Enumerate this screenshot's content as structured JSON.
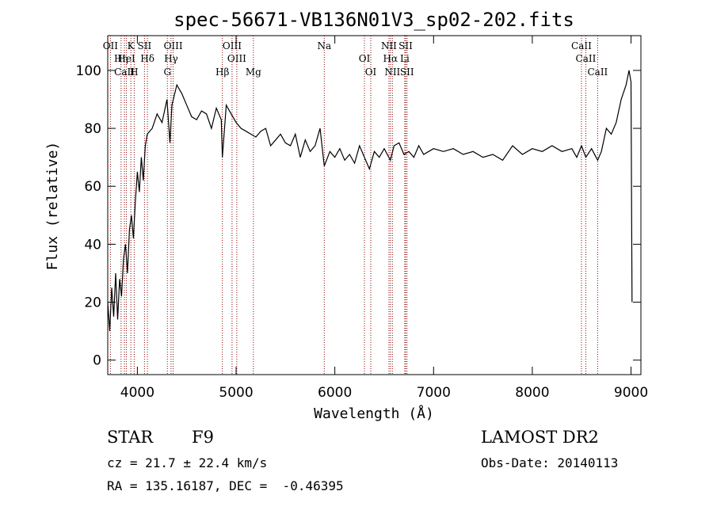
{
  "chart_data": {
    "type": "line",
    "title": "spec-56671-VB136N01V3_sp02-202.fits",
    "xlabel": "Wavelength (Å)",
    "ylabel": "Flux (relative)",
    "xlim": [
      3700,
      9100
    ],
    "ylim": [
      -5,
      112
    ],
    "x_ticks": [
      4000,
      5000,
      6000,
      7000,
      8000,
      9000
    ],
    "y_ticks": [
      0,
      20,
      40,
      60,
      80,
      100
    ],
    "series": [
      {
        "x": [
          3700,
          3720,
          3740,
          3760,
          3780,
          3800,
          3820,
          3840,
          3860,
          3880,
          3900,
          3920,
          3940,
          3960,
          3980,
          4000,
          4020,
          4040,
          4060,
          4080,
          4100,
          4150,
          4200,
          4250,
          4300,
          4330,
          4350,
          4400,
          4450,
          4500,
          4550,
          4600,
          4650,
          4700,
          4750,
          4800,
          4850,
          4861,
          4900,
          4950,
          5000,
          5050,
          5100,
          5150,
          5200,
          5250,
          5300,
          5350,
          5400,
          5450,
          5500,
          5550,
          5600,
          5650,
          5700,
          5750,
          5800,
          5850,
          5893,
          5950,
          6000,
          6050,
          6100,
          6150,
          6200,
          6250,
          6300,
          6350,
          6400,
          6450,
          6500,
          6563,
          6600,
          6650,
          6700,
          6750,
          6800,
          6850,
          6900,
          6950,
          7000,
          7100,
          7200,
          7300,
          7400,
          7500,
          7600,
          7700,
          7800,
          7900,
          8000,
          8100,
          8200,
          8300,
          8400,
          8450,
          8498,
          8542,
          8600,
          8662,
          8700,
          8750,
          8800,
          8850,
          8900,
          8950,
          8980,
          9000,
          9010
        ],
        "y": [
          20,
          10,
          25,
          15,
          30,
          14,
          28,
          22,
          35,
          40,
          30,
          45,
          50,
          42,
          55,
          65,
          58,
          70,
          62,
          74,
          78,
          80,
          85,
          82,
          90,
          75,
          88,
          95,
          92,
          88,
          84,
          83,
          86,
          85,
          80,
          87,
          83,
          70,
          88,
          85,
          82,
          80,
          79,
          78,
          77,
          79,
          80,
          74,
          76,
          78,
          75,
          74,
          78,
          70,
          76,
          72,
          74,
          80,
          67,
          72,
          70,
          73,
          69,
          71,
          68,
          74,
          70,
          66,
          72,
          70,
          73,
          69,
          74,
          75,
          71,
          72,
          70,
          74,
          71,
          72,
          73,
          72,
          73,
          71,
          72,
          70,
          71,
          69,
          74,
          71,
          73,
          72,
          74,
          72,
          73,
          70,
          74,
          70,
          73,
          69,
          72,
          80,
          78,
          82,
          90,
          95,
          100,
          96,
          20
        ]
      }
    ],
    "lines": [
      {
        "label": "OII",
        "x": 3727
      },
      {
        "label": "Hη",
        "x": 3835
      },
      {
        "label": "CaII",
        "x": 3869
      },
      {
        "label": "K",
        "x": 3934
      },
      {
        "label": "HeI",
        "x": 3889
      },
      {
        "label": "H",
        "x": 3968
      },
      {
        "label": "SII",
        "x": 4072
      },
      {
        "label": "Hδ",
        "x": 4102
      },
      {
        "label": "G",
        "x": 4304
      },
      {
        "label": "OIII",
        "x": 4363
      },
      {
        "label": "Hγ",
        "x": 4341
      },
      {
        "label": "Hβ",
        "x": 4861
      },
      {
        "label": "OIII",
        "x": 4959
      },
      {
        "label": "OIII",
        "x": 5007
      },
      {
        "label": "Mg",
        "x": 5175
      },
      {
        "label": "Na",
        "x": 5893
      },
      {
        "label": "OI",
        "x": 6300
      },
      {
        "label": "OI",
        "x": 6364
      },
      {
        "label": "NII",
        "x": 6548
      },
      {
        "label": "Hα",
        "x": 6563
      },
      {
        "label": "NII",
        "x": 6583
      },
      {
        "label": "SII",
        "x": 6717
      },
      {
        "label": "Li",
        "x": 6708
      },
      {
        "label": "SII",
        "x": 6731
      },
      {
        "label": "CaII",
        "x": 8498
      },
      {
        "label": "CaII",
        "x": 8542
      },
      {
        "label": "CaII",
        "x": 8662
      }
    ]
  },
  "info": {
    "class": "STAR",
    "subclass": "F9",
    "survey": "LAMOST DR2",
    "cz": "cz = 21.7 ± 22.4 km/s",
    "obs_date": "Obs-Date: 20140113",
    "coords": "RA = 135.16187, DEC =  -0.46395"
  },
  "colors": {
    "spectrum": "#000000",
    "lines": "#8b0000"
  }
}
